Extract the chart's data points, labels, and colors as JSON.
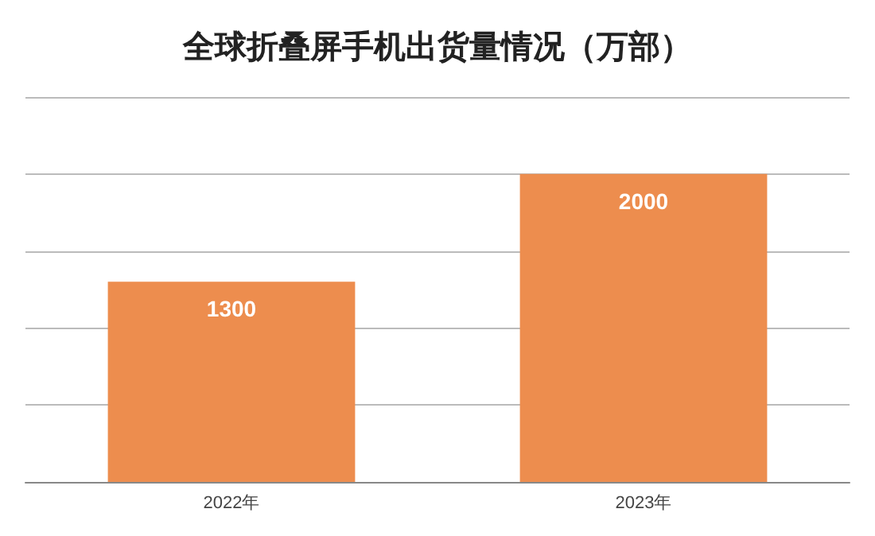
{
  "chart_data": {
    "type": "bar",
    "title": "全球折叠屏手机出货量情况（万部）",
    "categories": [
      "2022年",
      "2023年"
    ],
    "values": [
      1300,
      2000
    ],
    "color": "#ed8d4e",
    "ylim": [
      0,
      2500
    ],
    "yticks": [
      {
        "value": 0,
        "label": null
      },
      {
        "value": 500,
        "label": null
      },
      {
        "value": 1000,
        "label": null
      },
      {
        "value": 1500,
        "label": null
      },
      {
        "value": 2000,
        "label": null
      },
      {
        "value": 2500,
        "label": null
      }
    ],
    "grid": "y",
    "tick_labels": "x",
    "data_labels": true
  }
}
